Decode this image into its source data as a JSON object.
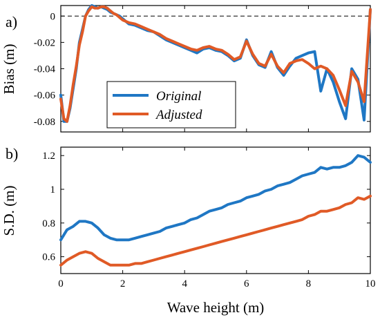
{
  "figure": {
    "panel_labels": [
      "a)",
      "b)"
    ],
    "xlabel": "Wave height (m)"
  },
  "legend": {
    "entries": [
      {
        "label": "Original",
        "color": "#1f77c4"
      },
      {
        "label": "Adjusted",
        "color": "#e05a26"
      }
    ]
  },
  "chart_data": [
    {
      "type": "line",
      "panel": "a)",
      "ylabel": "Bias (m)",
      "xlim": [
        0,
        10
      ],
      "ylim": [
        -0.088,
        0.008
      ],
      "xticks": [
        "0",
        "2",
        "4",
        "6",
        "8",
        "10"
      ],
      "yticks": [
        "0",
        "-0.02",
        "-0.04",
        "-0.06",
        "-0.08"
      ],
      "ytick_values": [
        0,
        -0.02,
        -0.04,
        -0.06,
        -0.08
      ],
      "zero_line": "dashed",
      "legend_position": "bottom-left",
      "series": [
        {
          "name": "Original",
          "color": "#1f77c4",
          "x": [
            0.0,
            0.1,
            0.2,
            0.3,
            0.4,
            0.5,
            0.6,
            0.7,
            0.8,
            0.9,
            1.0,
            1.1,
            1.2,
            1.3,
            1.4,
            1.5,
            1.6,
            1.7,
            1.8,
            1.9,
            2.0,
            2.2,
            2.4,
            2.6,
            2.8,
            3.0,
            3.2,
            3.4,
            3.6,
            3.8,
            4.0,
            4.2,
            4.4,
            4.6,
            4.8,
            5.0,
            5.2,
            5.4,
            5.6,
            5.8,
            6.0,
            6.2,
            6.4,
            6.6,
            6.8,
            7.0,
            7.2,
            7.4,
            7.6,
            7.8,
            8.0,
            8.2,
            8.4,
            8.6,
            8.8,
            9.0,
            9.2,
            9.4,
            9.6,
            9.8,
            10.0
          ],
          "y": [
            -0.06,
            -0.08,
            -0.08,
            -0.07,
            -0.055,
            -0.04,
            -0.02,
            -0.01,
            0.0,
            0.005,
            0.008,
            0.007,
            0.006,
            0.007,
            0.006,
            0.005,
            0.003,
            0.002,
            0.001,
            0.0,
            -0.002,
            -0.006,
            -0.007,
            -0.009,
            -0.011,
            -0.012,
            -0.015,
            -0.018,
            -0.02,
            -0.022,
            -0.024,
            -0.026,
            -0.028,
            -0.025,
            -0.024,
            -0.026,
            -0.027,
            -0.03,
            -0.034,
            -0.032,
            -0.018,
            -0.03,
            -0.037,
            -0.039,
            -0.027,
            -0.039,
            -0.045,
            -0.038,
            -0.032,
            -0.03,
            -0.028,
            -0.027,
            -0.057,
            -0.04,
            -0.05,
            -0.065,
            -0.078,
            -0.04,
            -0.048,
            -0.079,
            0.005
          ]
        },
        {
          "name": "Adjusted",
          "color": "#e05a26",
          "x": [
            0.0,
            0.1,
            0.2,
            0.3,
            0.4,
            0.5,
            0.6,
            0.7,
            0.8,
            0.9,
            1.0,
            1.1,
            1.2,
            1.3,
            1.4,
            1.5,
            1.6,
            1.7,
            1.8,
            1.9,
            2.0,
            2.2,
            2.4,
            2.6,
            2.8,
            3.0,
            3.2,
            3.4,
            3.6,
            3.8,
            4.0,
            4.2,
            4.4,
            4.6,
            4.8,
            5.0,
            5.2,
            5.4,
            5.6,
            5.8,
            6.0,
            6.2,
            6.4,
            6.6,
            6.8,
            7.0,
            7.2,
            7.4,
            7.6,
            7.8,
            8.0,
            8.2,
            8.4,
            8.6,
            8.8,
            9.0,
            9.2,
            9.4,
            9.6,
            9.8,
            10.0
          ],
          "y": [
            -0.063,
            -0.078,
            -0.08,
            -0.068,
            -0.052,
            -0.038,
            -0.022,
            -0.012,
            0.0,
            0.004,
            0.007,
            0.006,
            0.006,
            0.007,
            0.007,
            0.006,
            0.004,
            0.002,
            0.001,
            -0.001,
            -0.003,
            -0.005,
            -0.006,
            -0.008,
            -0.01,
            -0.012,
            -0.014,
            -0.017,
            -0.019,
            -0.021,
            -0.023,
            -0.025,
            -0.026,
            -0.024,
            -0.023,
            -0.025,
            -0.026,
            -0.029,
            -0.033,
            -0.031,
            -0.019,
            -0.029,
            -0.036,
            -0.038,
            -0.029,
            -0.038,
            -0.043,
            -0.036,
            -0.034,
            -0.033,
            -0.036,
            -0.04,
            -0.038,
            -0.04,
            -0.045,
            -0.056,
            -0.068,
            -0.042,
            -0.05,
            -0.065,
            0.005
          ]
        }
      ]
    },
    {
      "type": "line",
      "panel": "b)",
      "ylabel": "S.D. (m)",
      "xlabel": "Wave height (m)",
      "xlim": [
        0,
        10
      ],
      "ylim": [
        0.5,
        1.25
      ],
      "xticks": [
        "0",
        "2",
        "4",
        "6",
        "8",
        "10"
      ],
      "xtick_values": [
        0,
        2,
        4,
        6,
        8,
        10
      ],
      "yticks": [
        "0.6",
        "0.8",
        "1",
        "1.2"
      ],
      "ytick_values": [
        0.6,
        0.8,
        1.0,
        1.2
      ],
      "series": [
        {
          "name": "Original",
          "color": "#1f77c4",
          "x": [
            0.0,
            0.2,
            0.4,
            0.6,
            0.8,
            1.0,
            1.2,
            1.4,
            1.6,
            1.8,
            2.0,
            2.2,
            2.4,
            2.6,
            2.8,
            3.0,
            3.2,
            3.4,
            3.6,
            3.8,
            4.0,
            4.2,
            4.4,
            4.6,
            4.8,
            5.0,
            5.2,
            5.4,
            5.6,
            5.8,
            6.0,
            6.2,
            6.4,
            6.6,
            6.8,
            7.0,
            7.2,
            7.4,
            7.6,
            7.8,
            8.0,
            8.2,
            8.4,
            8.6,
            8.8,
            9.0,
            9.2,
            9.4,
            9.6,
            9.8,
            10.0
          ],
          "y": [
            0.7,
            0.76,
            0.78,
            0.81,
            0.81,
            0.8,
            0.77,
            0.73,
            0.71,
            0.7,
            0.7,
            0.7,
            0.71,
            0.72,
            0.73,
            0.74,
            0.75,
            0.77,
            0.78,
            0.79,
            0.8,
            0.82,
            0.83,
            0.85,
            0.87,
            0.88,
            0.89,
            0.91,
            0.92,
            0.93,
            0.95,
            0.96,
            0.97,
            0.99,
            1.0,
            1.02,
            1.03,
            1.04,
            1.06,
            1.08,
            1.09,
            1.1,
            1.13,
            1.12,
            1.13,
            1.13,
            1.14,
            1.16,
            1.2,
            1.19,
            1.16
          ]
        },
        {
          "name": "Adjusted",
          "color": "#e05a26",
          "x": [
            0.0,
            0.2,
            0.4,
            0.6,
            0.8,
            1.0,
            1.2,
            1.4,
            1.6,
            1.8,
            2.0,
            2.2,
            2.4,
            2.6,
            2.8,
            3.0,
            3.2,
            3.4,
            3.6,
            3.8,
            4.0,
            4.2,
            4.4,
            4.6,
            4.8,
            5.0,
            5.2,
            5.4,
            5.6,
            5.8,
            6.0,
            6.2,
            6.4,
            6.6,
            6.8,
            7.0,
            7.2,
            7.4,
            7.6,
            7.8,
            8.0,
            8.2,
            8.4,
            8.6,
            8.8,
            9.0,
            9.2,
            9.4,
            9.6,
            9.8,
            10.0
          ],
          "y": [
            0.55,
            0.58,
            0.6,
            0.62,
            0.63,
            0.62,
            0.59,
            0.57,
            0.55,
            0.55,
            0.55,
            0.55,
            0.56,
            0.56,
            0.57,
            0.58,
            0.59,
            0.6,
            0.61,
            0.62,
            0.63,
            0.64,
            0.65,
            0.66,
            0.67,
            0.68,
            0.69,
            0.7,
            0.71,
            0.72,
            0.73,
            0.74,
            0.75,
            0.76,
            0.77,
            0.78,
            0.79,
            0.8,
            0.81,
            0.82,
            0.84,
            0.85,
            0.87,
            0.87,
            0.88,
            0.89,
            0.91,
            0.92,
            0.95,
            0.94,
            0.96
          ]
        }
      ]
    }
  ]
}
